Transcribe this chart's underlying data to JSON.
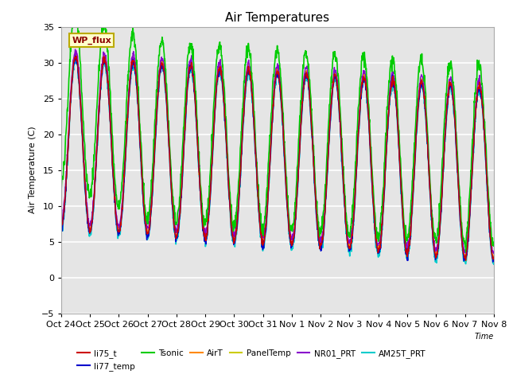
{
  "title": "Air Temperatures",
  "ylabel": "Air Temperature (C)",
  "xlabel": "Time",
  "ylim": [
    -5,
    35
  ],
  "background_color": "#e5e5e5",
  "grid_color": "white",
  "series": {
    "li75_t": {
      "color": "#cc0000",
      "lw": 1.0
    },
    "li77_temp": {
      "color": "#0000cc",
      "lw": 1.0
    },
    "Tsonic": {
      "color": "#00cc00",
      "lw": 1.2
    },
    "AirT": {
      "color": "#ff8800",
      "lw": 1.0
    },
    "PanelTemp": {
      "color": "#cccc00",
      "lw": 1.0
    },
    "NR01_PRT": {
      "color": "#8800cc",
      "lw": 1.0
    },
    "AM25T_PRT": {
      "color": "#00cccc",
      "lw": 1.2
    }
  },
  "xtick_labels": [
    "Oct 24",
    "Oct 25",
    "Oct 26",
    "Oct 27",
    "Oct 28",
    "Oct 29",
    "Oct 30",
    "Oct 31",
    "Nov 1",
    "Nov 2",
    "Nov 3",
    "Nov 4",
    "Nov 5",
    "Nov 6",
    "Nov 7",
    "Nov 8"
  ],
  "annotation_text": "WP_flux",
  "num_days": 15,
  "points_per_day": 96
}
